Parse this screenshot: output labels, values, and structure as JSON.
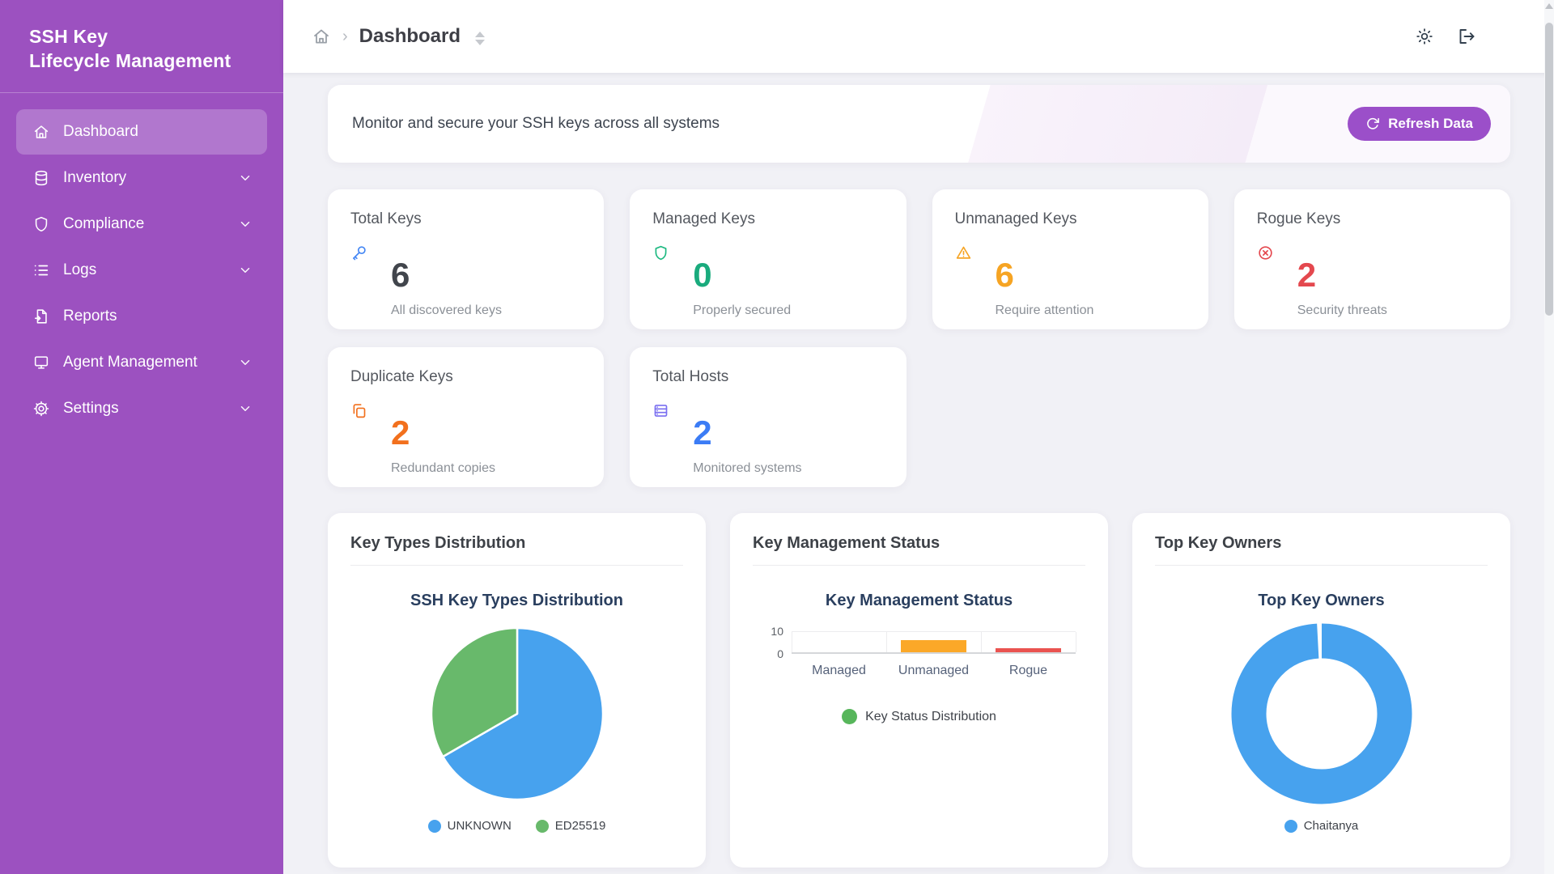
{
  "app_title": {
    "line1": "SSH Key",
    "line2": "Lifecycle Management"
  },
  "sidebar": {
    "items": [
      {
        "label": "Dashboard",
        "icon": "home-icon",
        "active": true,
        "has_chevron": false
      },
      {
        "label": "Inventory",
        "icon": "database-icon",
        "active": false,
        "has_chevron": true
      },
      {
        "label": "Compliance",
        "icon": "shield-icon",
        "active": false,
        "has_chevron": true
      },
      {
        "label": "Logs",
        "icon": "list-icon",
        "active": false,
        "has_chevron": true
      },
      {
        "label": "Reports",
        "icon": "report-icon",
        "active": false,
        "has_chevron": false
      },
      {
        "label": "Agent Management",
        "icon": "monitor-icon",
        "active": false,
        "has_chevron": true
      },
      {
        "label": "Settings",
        "icon": "gear-icon",
        "active": false,
        "has_chevron": true
      }
    ]
  },
  "header": {
    "breadcrumb_home_icon": "home-icon",
    "breadcrumb_current": "Dashboard",
    "theme_icon": "sun-icon",
    "logout_icon": "logout-icon"
  },
  "banner": {
    "text": "Monitor and secure your SSH keys across all systems",
    "refresh_button": "Refresh Data",
    "refresh_icon": "refresh-icon"
  },
  "stats": [
    {
      "title": "Total Keys",
      "value": "6",
      "subtitle": "All discovered keys",
      "icon": "key-icon",
      "color": "#41454c",
      "icon_color": "#4285f4"
    },
    {
      "title": "Managed Keys",
      "value": "0",
      "subtitle": "Properly secured",
      "icon": "shield-icon",
      "color": "#1aab7d",
      "icon_color": "#1db981"
    },
    {
      "title": "Unmanaged Keys",
      "value": "6",
      "subtitle": "Require attention",
      "icon": "warning-triangle-icon",
      "color": "#f6a423",
      "icon_color": "#f6a423"
    },
    {
      "title": "Rogue Keys",
      "value": "2",
      "subtitle": "Security threats",
      "icon": "x-circle-icon",
      "color": "#e4484e",
      "icon_color": "#e4484e"
    },
    {
      "title": "Duplicate Keys",
      "value": "2",
      "subtitle": "Redundant copies",
      "icon": "copy-icon",
      "color": "#f2701d",
      "icon_color": "#f2701d"
    },
    {
      "title": "Total Hosts",
      "value": "2",
      "subtitle": "Monitored systems",
      "icon": "server-icon",
      "color": "#3b7cf5",
      "icon_color": "#7a6ff0"
    }
  ],
  "panels": [
    {
      "title": "Key Types Distribution"
    },
    {
      "title": "Key Management Status"
    },
    {
      "title": "Top Key Owners"
    }
  ],
  "colors": {
    "sidebar_purple": "#9c51c0",
    "accent_purple": "#9b4fc9",
    "chart_blue": "#47a2ee",
    "chart_green": "#68b96b",
    "bar_orange": "#fba828",
    "bar_red": "#ea5350",
    "legend_green": "#57b65b",
    "chart_title_navy": "#2a3f5f"
  },
  "chart_data": [
    {
      "type": "pie",
      "title": "SSH Key Types Distribution",
      "labels": [
        "UNKNOWN",
        "ED25519"
      ],
      "values": [
        4,
        2
      ],
      "colors": [
        "#47a2ee",
        "#68b96b"
      ],
      "legend_position": "bottom"
    },
    {
      "type": "bar",
      "title": "Key Management Status",
      "categories": [
        "Managed",
        "Unmanaged",
        "Rogue"
      ],
      "values": [
        0,
        6,
        2
      ],
      "colors": [
        "#bdbdbd",
        "#fba828",
        "#ea5350"
      ],
      "ylim": [
        0,
        10
      ],
      "yticks": [
        10,
        0
      ],
      "grid": true,
      "legend": {
        "label": "Key Status Distribution",
        "color": "#57b65b",
        "position": "bottom"
      }
    },
    {
      "type": "donut",
      "title": "Top Key Owners",
      "labels": [
        "Chaitanya"
      ],
      "values": [
        6
      ],
      "colors": [
        "#47a2ee"
      ],
      "legend_position": "bottom"
    }
  ]
}
